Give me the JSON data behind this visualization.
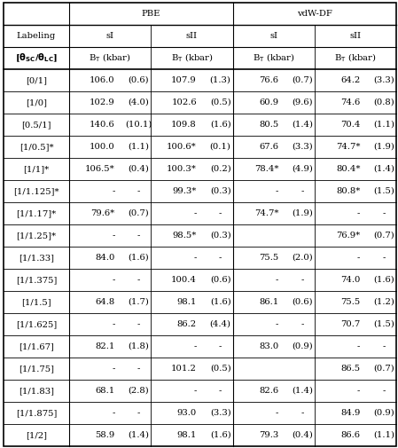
{
  "rows": [
    {
      "label": "[0/1]",
      "pbe_sI": "106.0",
      "pbe_sI_e": "(0.6)",
      "pbe_sII": "107.9",
      "pbe_sII_e": "(1.3)",
      "vdw_sI": "76.6",
      "vdw_sI_e": "(0.7)",
      "vdw_sII": "64.2",
      "vdw_sII_e": "(3.3)"
    },
    {
      "label": "[1/0]",
      "pbe_sI": "102.9",
      "pbe_sI_e": "(4.0)",
      "pbe_sII": "102.6",
      "pbe_sII_e": "(0.5)",
      "vdw_sI": "60.9",
      "vdw_sI_e": "(9.6)",
      "vdw_sII": "74.6",
      "vdw_sII_e": "(0.8)"
    },
    {
      "label": "[0.5/1]",
      "pbe_sI": "140.6",
      "pbe_sI_e": "(10.1)",
      "pbe_sII": "109.8",
      "pbe_sII_e": "(1.6)",
      "vdw_sI": "80.5",
      "vdw_sI_e": "(1.4)",
      "vdw_sII": "70.4",
      "vdw_sII_e": "(1.1)"
    },
    {
      "label": "[1/0.5]*",
      "pbe_sI": "100.0",
      "pbe_sI_e": "(1.1)",
      "pbe_sII": "100.6*",
      "pbe_sII_e": "(0.1)",
      "vdw_sI": "67.6",
      "vdw_sI_e": "(3.3)",
      "vdw_sII": "74.7*",
      "vdw_sII_e": "(1.9)"
    },
    {
      "label": "[1/1]*",
      "pbe_sI": "106.5*",
      "pbe_sI_e": "(0.4)",
      "pbe_sII": "100.3*",
      "pbe_sII_e": "(0.2)",
      "vdw_sI": "78.4*",
      "vdw_sI_e": "(4.9)",
      "vdw_sII": "80.4*",
      "vdw_sII_e": "(1.4)"
    },
    {
      "label": "[1/1.125]*",
      "pbe_sI": "-",
      "pbe_sI_e": "-",
      "pbe_sII": "99.3*",
      "pbe_sII_e": "(0.3)",
      "vdw_sI": "-",
      "vdw_sI_e": "-",
      "vdw_sII": "80.8*",
      "vdw_sII_e": "(1.5)"
    },
    {
      "label": "[1/1.17]*",
      "pbe_sI": "79.6*",
      "pbe_sI_e": "(0.7)",
      "pbe_sII": "-",
      "pbe_sII_e": "-",
      "vdw_sI": "74.7*",
      "vdw_sI_e": "(1.9)",
      "vdw_sII": "-",
      "vdw_sII_e": "-"
    },
    {
      "label": "[1/1.25]*",
      "pbe_sI": "-",
      "pbe_sI_e": "-",
      "pbe_sII": "98.5*",
      "pbe_sII_e": "(0.3)",
      "vdw_sI": "",
      "vdw_sI_e": "",
      "vdw_sII": "76.9*",
      "vdw_sII_e": "(0.7)"
    },
    {
      "label": "[1/1.33]",
      "pbe_sI": "84.0",
      "pbe_sI_e": "(1.6)",
      "pbe_sII": "-",
      "pbe_sII_e": "-",
      "vdw_sI": "75.5",
      "vdw_sI_e": "(2.0)",
      "vdw_sII": "-",
      "vdw_sII_e": "-"
    },
    {
      "label": "[1/1.375]",
      "pbe_sI": "-",
      "pbe_sI_e": "-",
      "pbe_sII": "100.4",
      "pbe_sII_e": "(0.6)",
      "vdw_sI": "-",
      "vdw_sI_e": "-",
      "vdw_sII": "74.0",
      "vdw_sII_e": "(1.6)"
    },
    {
      "label": "[1/1.5]",
      "pbe_sI": "64.8",
      "pbe_sI_e": "(1.7)",
      "pbe_sII": "98.1",
      "pbe_sII_e": "(1.6)",
      "vdw_sI": "86.1",
      "vdw_sI_e": "(0.6)",
      "vdw_sII": "75.5",
      "vdw_sII_e": "(1.2)"
    },
    {
      "label": "[1/1.625]",
      "pbe_sI": "-",
      "pbe_sI_e": "-",
      "pbe_sII": "86.2",
      "pbe_sII_e": "(4.4)",
      "vdw_sI": "-",
      "vdw_sI_e": "-",
      "vdw_sII": "70.7",
      "vdw_sII_e": "(1.5)"
    },
    {
      "label": "[1/1.67]",
      "pbe_sI": "82.1",
      "pbe_sI_e": "(1.8)",
      "pbe_sII": "-",
      "pbe_sII_e": "-",
      "vdw_sI": "83.0",
      "vdw_sI_e": "(0.9)",
      "vdw_sII": "-",
      "vdw_sII_e": "-"
    },
    {
      "label": "[1/1.75]",
      "pbe_sI": "-",
      "pbe_sI_e": "-",
      "pbe_sII": "101.2",
      "pbe_sII_e": "(0.5)",
      "vdw_sI": "",
      "vdw_sI_e": "",
      "vdw_sII": "86.5",
      "vdw_sII_e": "(0.7)"
    },
    {
      "label": "[1/1.83]",
      "pbe_sI": "68.1",
      "pbe_sI_e": "(2.8)",
      "pbe_sII": "-",
      "pbe_sII_e": "-",
      "vdw_sI": "82.6",
      "vdw_sI_e": "(1.4)",
      "vdw_sII": "-",
      "vdw_sII_e": "-"
    },
    {
      "label": "[1/1.875]",
      "pbe_sI": "-",
      "pbe_sI_e": "-",
      "pbe_sII": "93.0",
      "pbe_sII_e": "(3.3)",
      "vdw_sI": "-",
      "vdw_sI_e": "-",
      "vdw_sII": "84.9",
      "vdw_sII_e": "(0.9)"
    },
    {
      "label": "[1/2]",
      "pbe_sI": "58.9",
      "pbe_sI_e": "(1.4)",
      "pbe_sII": "98.1",
      "pbe_sII_e": "(1.6)",
      "vdw_sI": "79.3",
      "vdw_sI_e": "(0.4)",
      "vdw_sII": "86.6",
      "vdw_sII_e": "(1.1)"
    }
  ],
  "bg_color": "#ffffff",
  "line_color": "#000000",
  "font_size": 7.2,
  "font_family": "serif"
}
